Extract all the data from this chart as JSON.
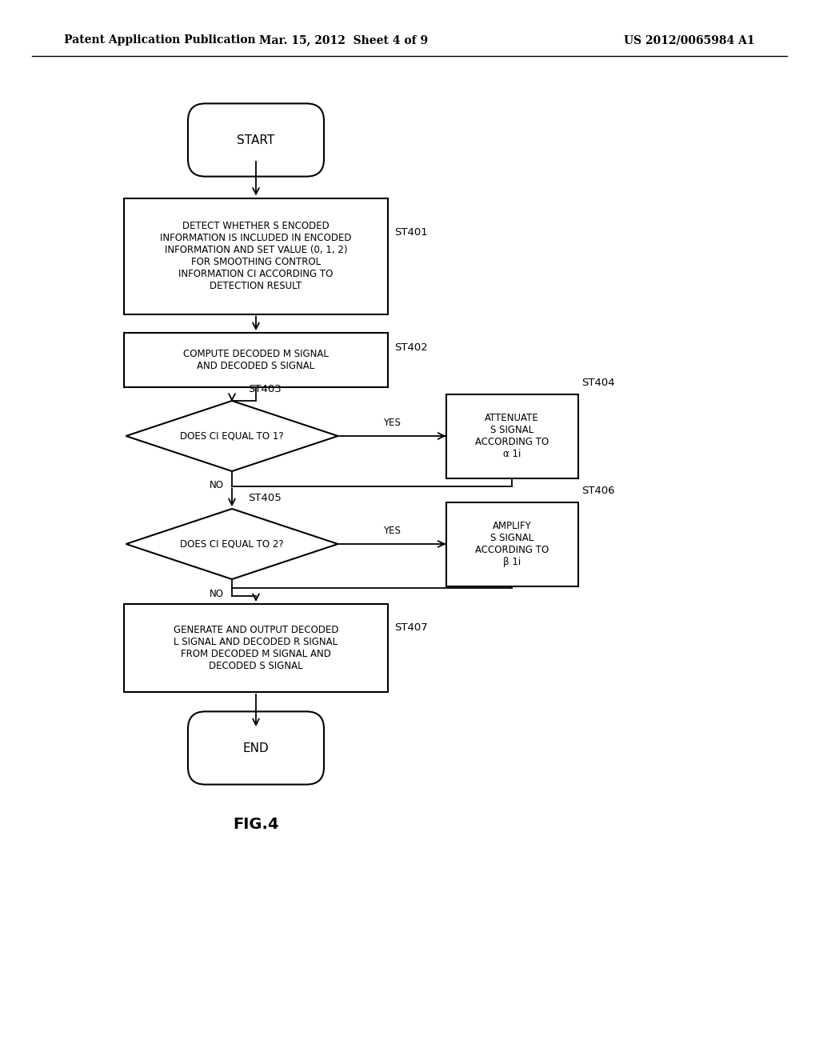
{
  "header_left": "Patent Application Publication",
  "header_mid": "Mar. 15, 2012  Sheet 4 of 9",
  "header_right": "US 2012/0065984 A1",
  "figure_label": "FIG.4",
  "background_color": "#ffffff",
  "line_color": "#000000",
  "start_label": "START",
  "end_label": "END",
  "st401_label": "DETECT WHETHER S ENCODED\nINFORMATION IS INCLUDED IN ENCODED\nINFORMATION AND SET VALUE (0, 1, 2)\nFOR SMOOTHING CONTROL\nINFORMATION CI ACCORDING TO\nDETECTION RESULT",
  "st401_tag": "ST401",
  "st402_label": "COMPUTE DECODED M SIGNAL\nAND DECODED S SIGNAL",
  "st402_tag": "ST402",
  "st403_label": "DOES CI EQUAL TO 1?",
  "st403_tag": "ST403",
  "st404_label": "ATTENUATE\nS SIGNAL\nACCORDING TO\nα 1i",
  "st404_tag": "ST404",
  "st405_label": "DOES CI EQUAL TO 2?",
  "st405_tag": "ST405",
  "st406_label": "AMPLIFY\nS SIGNAL\nACCORDING TO\nβ 1i",
  "st406_tag": "ST406",
  "st407_label": "GENERATE AND OUTPUT DECODED\nL SIGNAL AND DECODED R SIGNAL\nFROM DECODED M SIGNAL AND\nDECODED S SIGNAL",
  "st407_tag": "ST407",
  "yes_label": "YES",
  "no_label": "NO"
}
